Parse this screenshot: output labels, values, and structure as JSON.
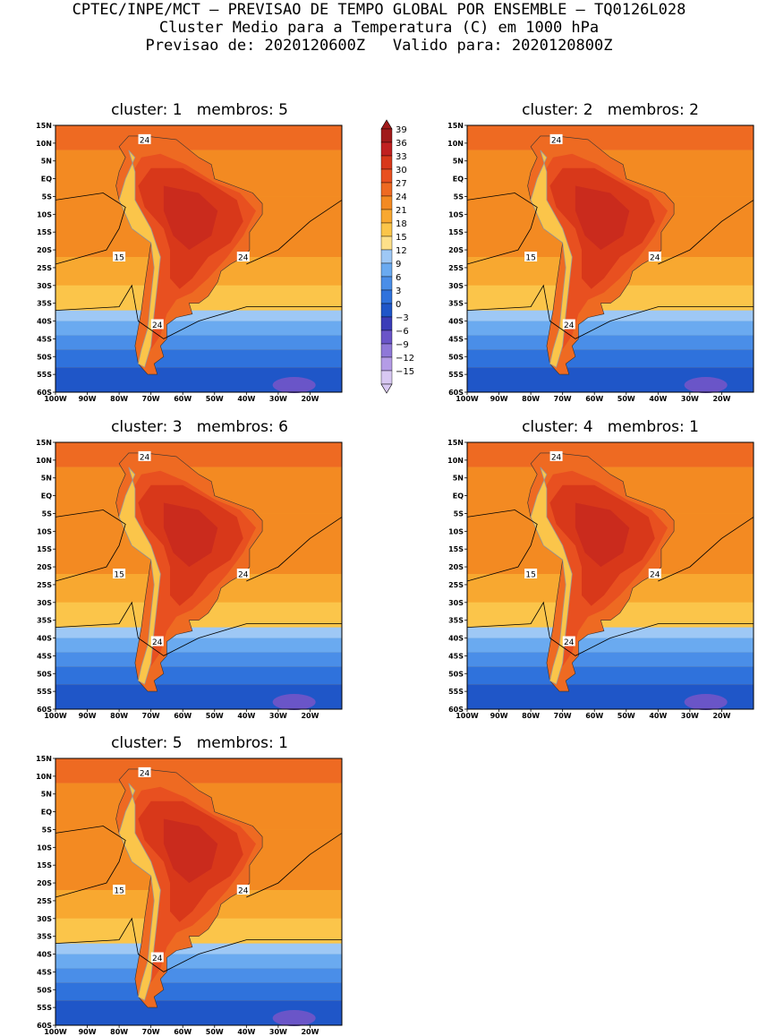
{
  "header": {
    "line1": "CPTEC/INPE/MCT – PREVISAO DE TEMPO GLOBAL POR ENSEMBLE – TQ0126L028",
    "line2": "Cluster Medio para a Temperatura (C) em 1000 hPa",
    "line3": "Previsao de: 2020120600Z   Valido para: 2020120800Z"
  },
  "panels": [
    {
      "title": "cluster: 1   membros: 5"
    },
    {
      "title": "cluster: 2   membros: 2"
    },
    {
      "title": "cluster: 3   membros: 6"
    },
    {
      "title": "cluster: 4   membros: 1"
    },
    {
      "title": "cluster: 5   membros: 1"
    }
  ],
  "axes": {
    "lat_labels": [
      "15N",
      "10N",
      "5N",
      "EQ",
      "5S",
      "10S",
      "15S",
      "20S",
      "25S",
      "30S",
      "35S",
      "40S",
      "45S",
      "50S",
      "55S",
      "60S"
    ],
    "lon_labels": [
      "100W",
      "90W",
      "80W",
      "70W",
      "60W",
      "50W",
      "40W",
      "30W",
      "20W"
    ]
  },
  "contour_labels": {
    "a": "24",
    "b": "15"
  },
  "colorbar": {
    "levels": [
      "39",
      "36",
      "33",
      "30",
      "27",
      "24",
      "21",
      "18",
      "15",
      "12",
      "9",
      "6",
      "3",
      "0",
      "−3",
      "−6",
      "−9",
      "−12",
      "−15"
    ],
    "colors": [
      "#a01a1a",
      "#c02020",
      "#d8381a",
      "#e85020",
      "#ee6a22",
      "#f38a22",
      "#f8a830",
      "#fbc54a",
      "#fde08a",
      "#9ec8f5",
      "#6aaaf0",
      "#4a8ee8",
      "#2f72dc",
      "#1f56c8",
      "#3b3db8",
      "#6a55c8",
      "#8f78d8",
      "#b49ce6",
      "#d8c8f2"
    ]
  },
  "chart_data": {
    "type": "heatmap",
    "variable": "Temperatura (C) em 1000 hPa",
    "color_levels": [
      39,
      36,
      33,
      30,
      27,
      24,
      21,
      18,
      15,
      12,
      9,
      6,
      3,
      0,
      -3,
      -6,
      -9,
      -12,
      -15
    ],
    "lat_range": [
      -60,
      15
    ],
    "lon_range": [
      -100,
      -10
    ],
    "contour_lines": [
      24,
      15
    ]
  }
}
